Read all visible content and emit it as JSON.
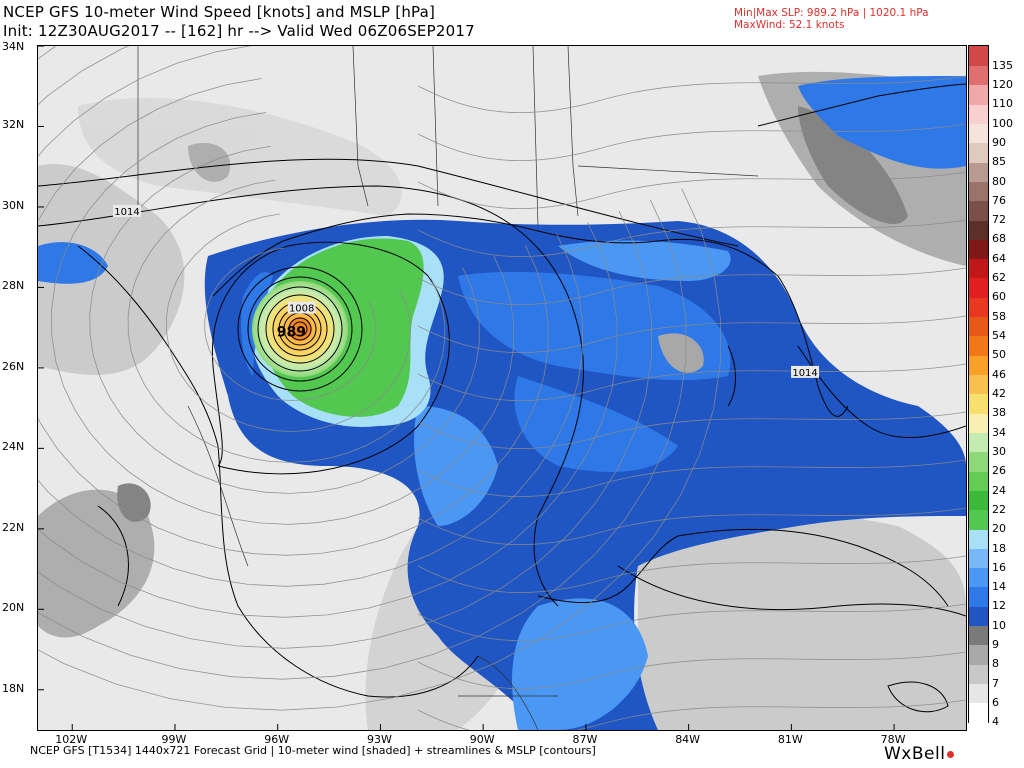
{
  "header": {
    "title": "NCEP GFS 10-meter Wind Speed [knots] and MSLP [hPa]",
    "subtitle": "Init: 12Z30AUG2017 -- [162] hr --> Valid Wed 06Z06SEP2017",
    "stat_minmax": "Min|Max SLP: 989.2 hPa | 1020.1 hPa",
    "stat_maxwind": "MaxWind: 52.1 knots"
  },
  "map": {
    "lat_labels": [
      "34N",
      "32N",
      "30N",
      "28N",
      "26N",
      "24N",
      "22N",
      "20N",
      "18N"
    ],
    "lat_values": [
      34,
      32,
      30,
      28,
      26,
      24,
      22,
      20,
      18
    ],
    "lon_labels": [
      "102W",
      "99W",
      "96W",
      "93W",
      "90W",
      "87W",
      "84W",
      "81W",
      "78W"
    ],
    "lon_values": [
      -102,
      -99,
      -96,
      -93,
      -90,
      -87,
      -84,
      -81,
      -78
    ],
    "extent": {
      "lon_min": -103,
      "lon_max": -75.9,
      "lat_min": 17,
      "lat_max": 34
    },
    "contour_labels": [
      {
        "text": "1014",
        "lon": -100.4,
        "lat": 29.9
      },
      {
        "text": "1008",
        "lon": -95.3,
        "lat": 27.5
      },
      {
        "text": "989",
        "lon": -95.6,
        "lat": 26.9
      },
      {
        "text": "1014",
        "lon": -80.6,
        "lat": 25.9
      }
    ],
    "storm_center": {
      "lon": -95.5,
      "lat": 27.0
    },
    "colors": {
      "land": "#e9e9e9",
      "border": "#000000",
      "streamline": "#8a8a8a"
    }
  },
  "colorbar": {
    "levels": [
      "4",
      "6",
      "7",
      "8",
      "9",
      "10",
      "12",
      "14",
      "16",
      "18",
      "20",
      "22",
      "24",
      "26",
      "30",
      "34",
      "38",
      "42",
      "46",
      "50",
      "54",
      "58",
      "60",
      "62",
      "64",
      "68",
      "72",
      "76",
      "80",
      "85",
      "90",
      "100",
      "110",
      "120",
      "135"
    ],
    "colors": [
      "#ffffff",
      "#e6e6e6",
      "#c8c8c8",
      "#a8a8a8",
      "#7a7a7a",
      "#1f56c4",
      "#2e78e8",
      "#4a98f4",
      "#78b8f8",
      "#a8e0f8",
      "#52c850",
      "#3cb83a",
      "#62cd52",
      "#8ed878",
      "#c4ecb0",
      "#f8f0b0",
      "#f8e070",
      "#f8c050",
      "#f8a028",
      "#f07818",
      "#e85818",
      "#e83820",
      "#e02020",
      "#c01818",
      "#801818",
      "#5a3028",
      "#7a5048",
      "#9a7468",
      "#b89a90",
      "#e0cac0",
      "#f4e4dc",
      "#f8d0d0",
      "#f0a8a8",
      "#e07070",
      "#d04848"
    ]
  },
  "footer": {
    "text": "NCEP GFS [T1534] 1440x721 Forecast Grid | 10-meter wind [shaded] + streamlines & MSLP [contours]",
    "brand": "WxBell"
  }
}
